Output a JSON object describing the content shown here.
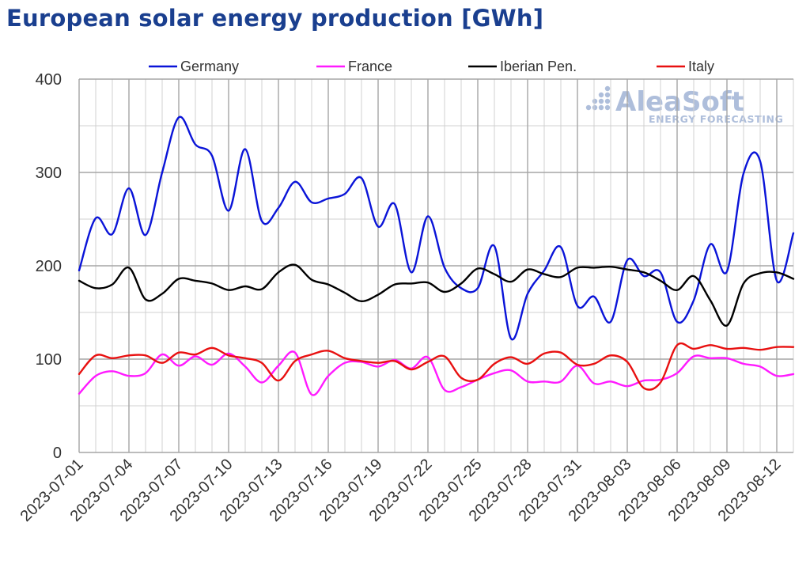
{
  "chart_data": {
    "type": "line",
    "title": "European solar energy production [GWh]",
    "xlabel": "",
    "ylabel": "",
    "ylim": [
      0,
      400
    ],
    "yticks": [
      0,
      100,
      200,
      300,
      400
    ],
    "x": [
      "2023-07-01",
      "2023-07-02",
      "2023-07-03",
      "2023-07-04",
      "2023-07-05",
      "2023-07-06",
      "2023-07-07",
      "2023-07-08",
      "2023-07-09",
      "2023-07-10",
      "2023-07-11",
      "2023-07-12",
      "2023-07-13",
      "2023-07-14",
      "2023-07-15",
      "2023-07-16",
      "2023-07-17",
      "2023-07-18",
      "2023-07-19",
      "2023-07-20",
      "2023-07-21",
      "2023-07-22",
      "2023-07-23",
      "2023-07-24",
      "2023-07-25",
      "2023-07-26",
      "2023-07-27",
      "2023-07-28",
      "2023-07-29",
      "2023-07-30",
      "2023-07-31",
      "2023-08-01",
      "2023-08-02",
      "2023-08-03",
      "2023-08-04",
      "2023-08-05",
      "2023-08-06",
      "2023-08-07",
      "2023-08-08",
      "2023-08-09",
      "2023-08-10",
      "2023-08-11",
      "2023-08-12",
      "2023-08-13"
    ],
    "xtick_labels": [
      "2023-07-01",
      "2023-07-04",
      "2023-07-07",
      "2023-07-10",
      "2023-07-13",
      "2023-07-16",
      "2023-07-19",
      "2023-07-22",
      "2023-07-25",
      "2023-07-28",
      "2023-07-31",
      "2023-08-03",
      "2023-08-06",
      "2023-08-09",
      "2023-08-12"
    ],
    "grid": true,
    "legend_position": "top",
    "series": [
      {
        "name": "Germany",
        "color": "#0a14d8",
        "values": [
          195,
          251,
          234,
          283,
          233,
          300,
          359,
          330,
          318,
          259,
          325,
          248,
          262,
          290,
          268,
          272,
          277,
          294,
          242,
          266,
          193,
          253,
          198,
          176,
          176,
          221,
          122,
          170,
          195,
          220,
          157,
          167,
          140,
          206,
          189,
          193,
          140,
          163,
          223,
          194,
          299,
          312,
          184,
          235
        ]
      },
      {
        "name": "France",
        "color": "#ff1aff",
        "values": [
          63,
          82,
          87,
          82,
          85,
          105,
          93,
          103,
          94,
          106,
          92,
          75,
          93,
          107,
          62,
          82,
          96,
          97,
          92,
          99,
          90,
          102,
          67,
          70,
          78,
          85,
          88,
          76,
          76,
          76,
          93,
          74,
          76,
          71,
          77,
          78,
          85,
          103,
          101,
          101,
          95,
          92,
          82,
          84
        ]
      },
      {
        "name": "Iberian Pen.",
        "color": "#000000",
        "values": [
          184,
          176,
          180,
          198,
          164,
          170,
          186,
          184,
          181,
          174,
          178,
          175,
          193,
          201,
          185,
          180,
          171,
          162,
          169,
          180,
          181,
          182,
          172,
          181,
          197,
          191,
          183,
          196,
          191,
          188,
          198,
          198,
          199,
          196,
          193,
          184,
          174,
          189,
          163,
          136,
          181,
          192,
          193,
          186
        ]
      },
      {
        "name": "Italy",
        "color": "#e81010",
        "values": [
          84,
          104,
          101,
          104,
          104,
          96,
          107,
          105,
          112,
          104,
          101,
          96,
          77,
          98,
          105,
          109,
          101,
          98,
          96,
          98,
          89,
          97,
          103,
          80,
          78,
          95,
          102,
          95,
          106,
          107,
          94,
          95,
          104,
          97,
          69,
          75,
          115,
          111,
          115,
          111,
          112,
          110,
          113,
          113
        ]
      }
    ]
  },
  "watermark": {
    "brand": "AleaSoft",
    "tagline": "ENERGY FORECASTING"
  }
}
